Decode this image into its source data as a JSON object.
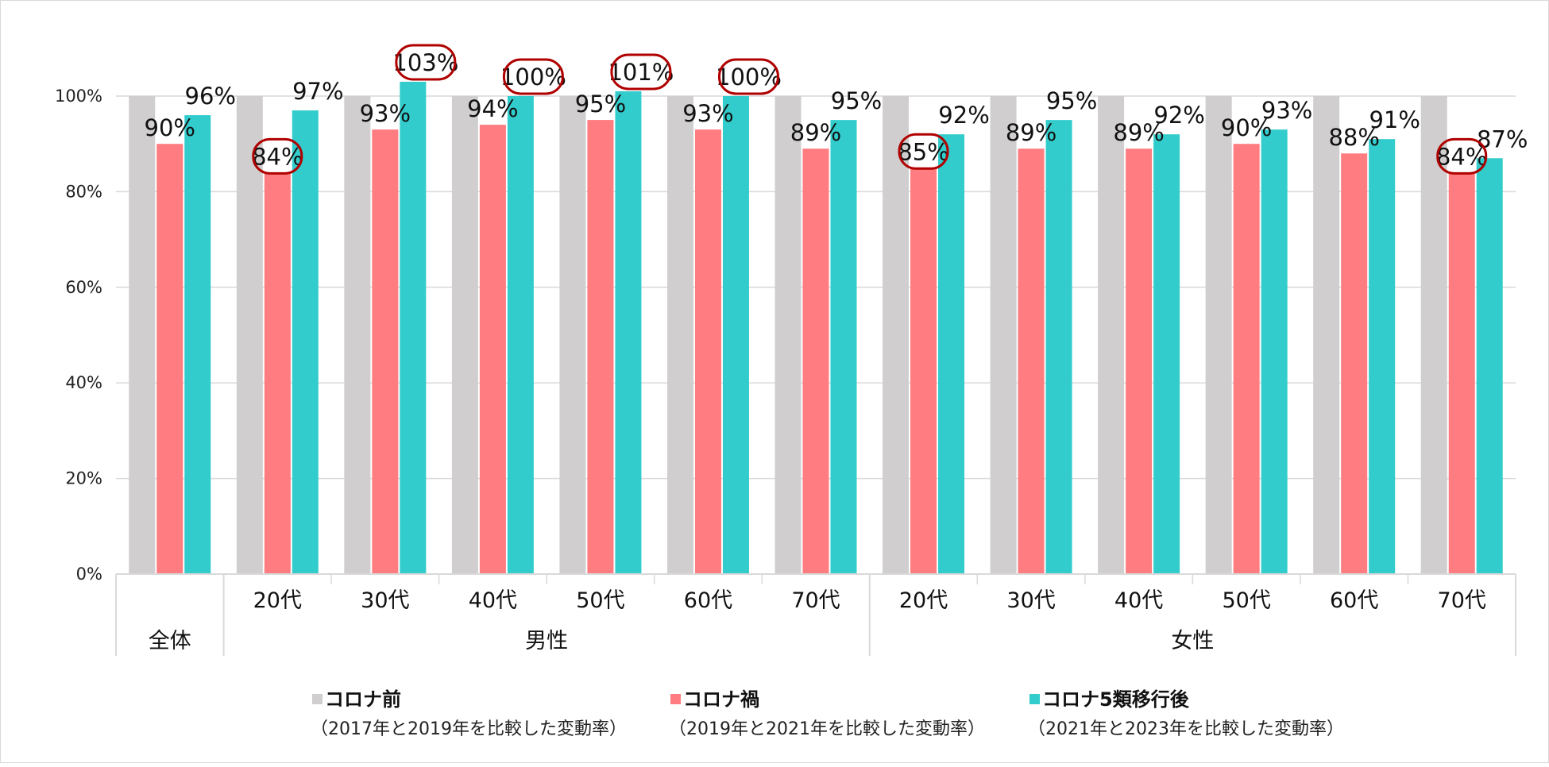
{
  "chart_data": {
    "type": "bar",
    "categories": [
      {
        "label": "",
        "group": "全体"
      },
      {
        "label": "20代",
        "group": "男性"
      },
      {
        "label": "30代",
        "group": "男性"
      },
      {
        "label": "40代",
        "group": "男性"
      },
      {
        "label": "50代",
        "group": "男性"
      },
      {
        "label": "60代",
        "group": "男性"
      },
      {
        "label": "70代",
        "group": "男性"
      },
      {
        "label": "20代",
        "group": "女性"
      },
      {
        "label": "30代",
        "group": "女性"
      },
      {
        "label": "40代",
        "group": "女性"
      },
      {
        "label": "50代",
        "group": "女性"
      },
      {
        "label": "60代",
        "group": "女性"
      },
      {
        "label": "70代",
        "group": "女性"
      }
    ],
    "groups": [
      {
        "name": "全体",
        "start": 0,
        "end": 0
      },
      {
        "name": "男性",
        "start": 1,
        "end": 6
      },
      {
        "name": "女性",
        "start": 7,
        "end": 12
      }
    ],
    "series": [
      {
        "name": "コロナ前",
        "description": "（2017年と2019年を比較した変動率）",
        "color": "#d0cece",
        "values": [
          100,
          100,
          100,
          100,
          100,
          100,
          100,
          100,
          100,
          100,
          100,
          100,
          100
        ],
        "labels": [
          "",
          "",
          "",
          "",
          "",
          "",
          "",
          "",
          "",
          "",
          "",
          "",
          ""
        ]
      },
      {
        "name": "コロナ禍",
        "description": "（2019年と2021年を比較した変動率）",
        "color": "#ff7c80",
        "values": [
          90,
          84,
          93,
          94,
          95,
          93,
          89,
          85,
          89,
          89,
          90,
          88,
          84
        ],
        "labels": [
          "90%",
          "84%",
          "93%",
          "94%",
          "95%",
          "93%",
          "89%",
          "85%",
          "89%",
          "89%",
          "90%",
          "88%",
          "84%"
        ]
      },
      {
        "name": "コロナ5類移行後",
        "description": "（2021年と2023年を比較した変動率）",
        "color": "#33cccc",
        "values": [
          96,
          97,
          103,
          100,
          101,
          100,
          95,
          92,
          95,
          92,
          93,
          91,
          87
        ],
        "labels": [
          "96%",
          "97%",
          "103%",
          "100%",
          "101%",
          "100%",
          "95%",
          "92%",
          "95%",
          "92%",
          "93%",
          "91%",
          "87%"
        ]
      }
    ],
    "highlights": [
      {
        "series": 1,
        "index": 1
      },
      {
        "series": 2,
        "index": 2
      },
      {
        "series": 2,
        "index": 3
      },
      {
        "series": 2,
        "index": 4
      },
      {
        "series": 2,
        "index": 5
      },
      {
        "series": 1,
        "index": 7
      },
      {
        "series": 1,
        "index": 12
      }
    ],
    "highlight_color": "#b00000",
    "y_ticks": [
      "0%",
      "20%",
      "40%",
      "60%",
      "80%",
      "100%"
    ],
    "ylim": [
      0,
      100
    ],
    "grid": true,
    "legend_position": "bottom"
  }
}
